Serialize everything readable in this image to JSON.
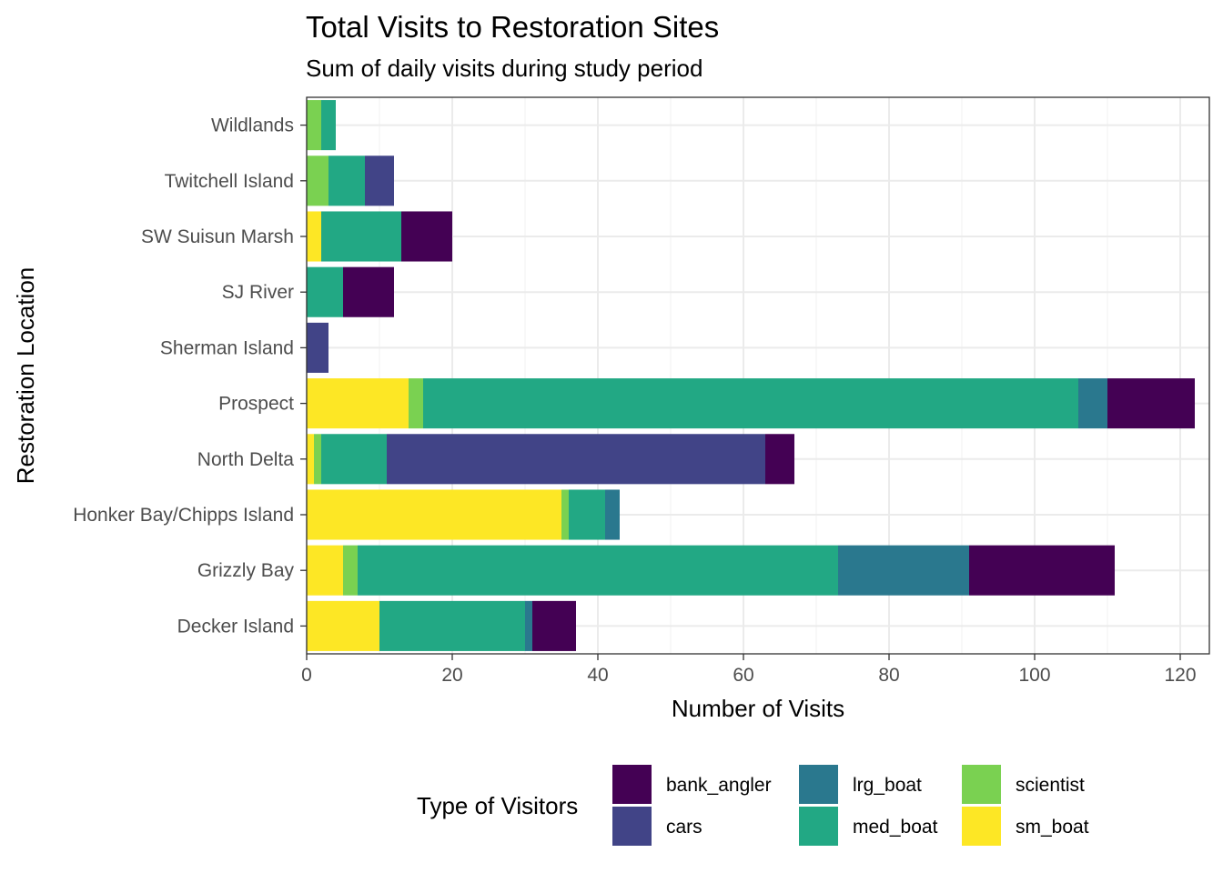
{
  "chart_data": {
    "type": "bar",
    "orientation": "horizontal",
    "stacked": true,
    "title": "Total Visits to Restoration Sites",
    "subtitle": "Sum of daily visits during study period",
    "xlabel": "Number of Visits",
    "ylabel": "Restoration Location",
    "xlim": [
      0,
      124
    ],
    "xticks": [
      0,
      20,
      40,
      60,
      80,
      100,
      120
    ],
    "grid": true,
    "legend": {
      "title": "Type of Visitors",
      "position": "bottom"
    },
    "categories": [
      "Decker Island",
      "Grizzly Bay",
      "Honker Bay/Chipps Island",
      "North Delta",
      "Prospect",
      "Sherman Island",
      "SJ River",
      "SW Suisun Marsh",
      "Twitchell Island",
      "Wildlands"
    ],
    "series": [
      {
        "name": "sm_boat",
        "color": "#FDE725",
        "values": [
          10,
          5,
          35,
          1,
          14,
          0,
          0,
          2,
          0,
          0
        ]
      },
      {
        "name": "scientist",
        "color": "#7AD151",
        "values": [
          0,
          2,
          1,
          1,
          2,
          0,
          0,
          0,
          3,
          2
        ]
      },
      {
        "name": "med_boat",
        "color": "#22A884",
        "values": [
          20,
          66,
          5,
          9,
          90,
          0,
          5,
          11,
          5,
          2
        ]
      },
      {
        "name": "lrg_boat",
        "color": "#2A788E",
        "values": [
          1,
          18,
          2,
          0,
          4,
          0,
          0,
          0,
          0,
          0
        ]
      },
      {
        "name": "cars",
        "color": "#414487",
        "values": [
          0,
          0,
          0,
          52,
          0,
          3,
          0,
          0,
          4,
          0
        ]
      },
      {
        "name": "bank_angler",
        "color": "#440154",
        "values": [
          6,
          20,
          0,
          4,
          12,
          0,
          7,
          7,
          0,
          0
        ]
      }
    ],
    "legend_order": [
      "bank_angler",
      "cars",
      "lrg_boat",
      "med_boat",
      "scientist",
      "sm_boat"
    ]
  }
}
